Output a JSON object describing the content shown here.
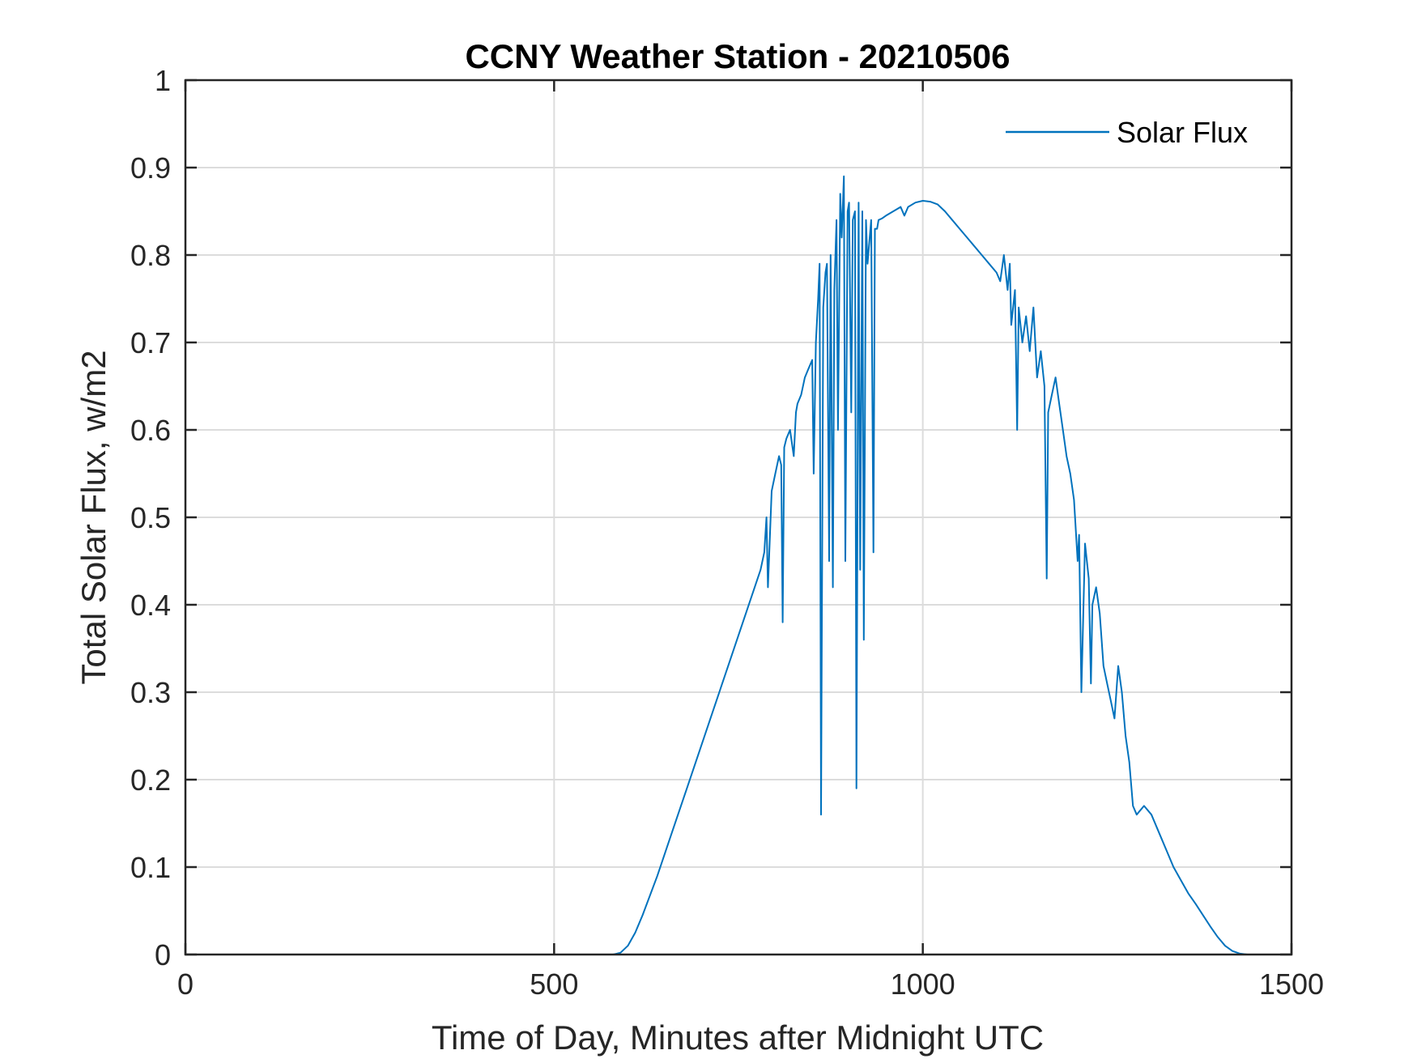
{
  "chart_data": {
    "type": "line",
    "title": "CCNY Weather Station - 20210506",
    "xlabel": "Time of Day, Minutes after Midnight UTC",
    "ylabel": "Total Solar Flux, w/m2",
    "xlim": [
      0,
      1500
    ],
    "ylim": [
      0,
      1
    ],
    "xticks": [
      0,
      500,
      1000,
      1500
    ],
    "xtick_labels": [
      "0",
      "500",
      "1000",
      "1500"
    ],
    "yticks": [
      0,
      0.1,
      0.2,
      0.3,
      0.4,
      0.5,
      0.6,
      0.7,
      0.8,
      0.9,
      1
    ],
    "ytick_labels": [
      "0",
      "0.1",
      "0.2",
      "0.3",
      "0.4",
      "0.5",
      "0.6",
      "0.7",
      "0.8",
      "0.9",
      "1"
    ],
    "grid": true,
    "legend": {
      "position": "top-right",
      "entries": [
        "Solar Flux"
      ]
    },
    "series": [
      {
        "name": "Solar Flux",
        "color": "#0072BD",
        "x": [
          0,
          100,
          200,
          300,
          400,
          500,
          580,
          590,
          600,
          610,
          620,
          640,
          660,
          680,
          700,
          720,
          740,
          760,
          780,
          785,
          788,
          790,
          795,
          800,
          805,
          808,
          810,
          812,
          815,
          820,
          825,
          828,
          830,
          835,
          840,
          845,
          850,
          852,
          855,
          858,
          860,
          862,
          865,
          868,
          870,
          873,
          875,
          878,
          880,
          883,
          885,
          888,
          890,
          893,
          895,
          898,
          900,
          903,
          905,
          908,
          910,
          913,
          915,
          918,
          920,
          923,
          925,
          928,
          930,
          933,
          935,
          938,
          940,
          945,
          950,
          960,
          970,
          975,
          980,
          990,
          1000,
          1010,
          1020,
          1030,
          1040,
          1050,
          1060,
          1070,
          1080,
          1090,
          1100,
          1105,
          1110,
          1115,
          1118,
          1120,
          1125,
          1128,
          1130,
          1135,
          1140,
          1145,
          1150,
          1155,
          1160,
          1165,
          1168,
          1170,
          1175,
          1180,
          1185,
          1190,
          1195,
          1200,
          1205,
          1210,
          1212,
          1215,
          1220,
          1225,
          1228,
          1230,
          1235,
          1240,
          1245,
          1250,
          1255,
          1260,
          1265,
          1270,
          1275,
          1280,
          1285,
          1290,
          1300,
          1310,
          1320,
          1330,
          1340,
          1350,
          1360,
          1370,
          1380,
          1390,
          1400,
          1410,
          1420,
          1430,
          1440
        ],
        "y": [
          0,
          0,
          0,
          0,
          0,
          0,
          0,
          0.002,
          0.01,
          0.025,
          0.045,
          0.09,
          0.14,
          0.19,
          0.24,
          0.29,
          0.34,
          0.39,
          0.44,
          0.46,
          0.5,
          0.42,
          0.53,
          0.55,
          0.57,
          0.56,
          0.38,
          0.58,
          0.59,
          0.6,
          0.57,
          0.62,
          0.63,
          0.64,
          0.66,
          0.67,
          0.68,
          0.55,
          0.7,
          0.75,
          0.79,
          0.16,
          0.74,
          0.78,
          0.79,
          0.45,
          0.8,
          0.42,
          0.76,
          0.84,
          0.6,
          0.87,
          0.82,
          0.89,
          0.45,
          0.85,
          0.86,
          0.62,
          0.84,
          0.85,
          0.19,
          0.86,
          0.44,
          0.85,
          0.36,
          0.84,
          0.79,
          0.82,
          0.84,
          0.46,
          0.83,
          0.83,
          0.84,
          0.842,
          0.845,
          0.85,
          0.855,
          0.845,
          0.855,
          0.86,
          0.862,
          0.861,
          0.858,
          0.85,
          0.84,
          0.83,
          0.82,
          0.81,
          0.8,
          0.79,
          0.78,
          0.77,
          0.8,
          0.76,
          0.79,
          0.72,
          0.76,
          0.6,
          0.74,
          0.7,
          0.73,
          0.69,
          0.74,
          0.66,
          0.69,
          0.65,
          0.43,
          0.62,
          0.64,
          0.66,
          0.63,
          0.6,
          0.57,
          0.55,
          0.52,
          0.45,
          0.48,
          0.3,
          0.47,
          0.43,
          0.31,
          0.4,
          0.42,
          0.39,
          0.33,
          0.31,
          0.29,
          0.27,
          0.33,
          0.3,
          0.25,
          0.22,
          0.17,
          0.16,
          0.17,
          0.16,
          0.14,
          0.12,
          0.1,
          0.085,
          0.07,
          0.058,
          0.045,
          0.032,
          0.02,
          0.01,
          0.004,
          0.001,
          0
        ]
      }
    ]
  }
}
